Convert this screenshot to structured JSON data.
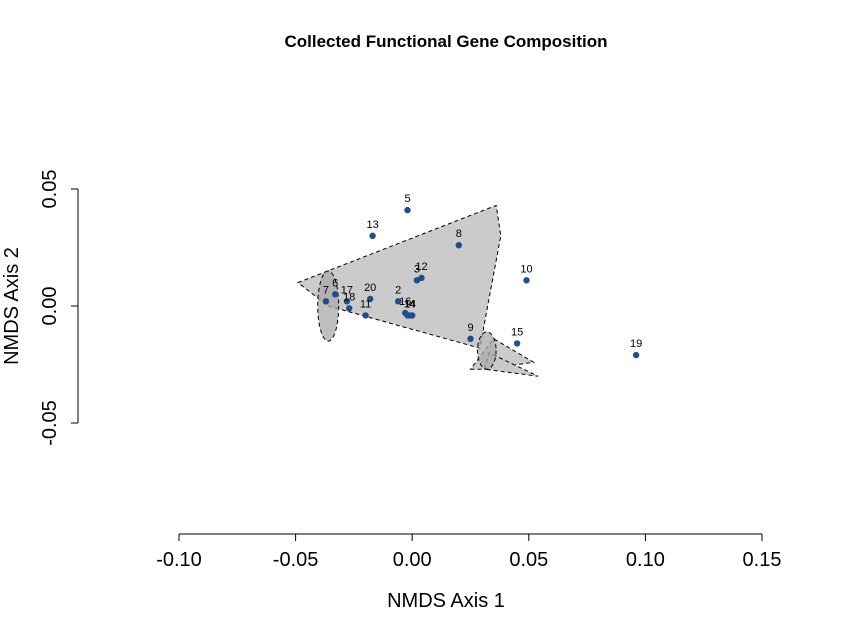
{
  "chart_data": {
    "type": "scatter",
    "title": "Collected Functional Gene Composition",
    "xlabel": "NMDS Axis 1",
    "ylabel": "NMDS Axis 2",
    "xlim": [
      -0.1,
      0.15
    ],
    "ylim": [
      -0.05,
      0.05
    ],
    "x_ticks": [
      -0.1,
      -0.05,
      0.0,
      0.05,
      0.1,
      0.15
    ],
    "x_tick_labels": [
      "-0.10",
      "-0.05",
      "0.00",
      "0.05",
      "0.10",
      "0.15"
    ],
    "y_ticks": [
      -0.05,
      0.0,
      0.05
    ],
    "y_tick_labels": [
      "-0.05",
      "0.00",
      "0.05"
    ],
    "point_color": "#1f4e8c",
    "fill_color": "#c8c8c8",
    "points": [
      {
        "label": "1",
        "x": -0.002,
        "y": -0.004
      },
      {
        "label": "2",
        "x": -0.006,
        "y": 0.002
      },
      {
        "label": "3",
        "x": 0.002,
        "y": 0.011
      },
      {
        "label": "4",
        "x": 0.0,
        "y": -0.004
      },
      {
        "label": "5",
        "x": -0.002,
        "y": 0.041
      },
      {
        "label": "6",
        "x": -0.033,
        "y": 0.005
      },
      {
        "label": "7",
        "x": -0.037,
        "y": 0.002
      },
      {
        "label": "8",
        "x": 0.02,
        "y": 0.026
      },
      {
        "label": "9",
        "x": 0.025,
        "y": -0.014
      },
      {
        "label": "10",
        "x": 0.049,
        "y": 0.011
      },
      {
        "label": "11",
        "x": -0.02,
        "y": -0.004
      },
      {
        "label": "12",
        "x": 0.004,
        "y": 0.012
      },
      {
        "label": "13",
        "x": -0.017,
        "y": 0.03
      },
      {
        "label": "14",
        "x": -0.001,
        "y": -0.004
      },
      {
        "label": "15",
        "x": 0.045,
        "y": -0.016
      },
      {
        "label": "16",
        "x": -0.003,
        "y": -0.003
      },
      {
        "label": "17",
        "x": -0.028,
        "y": 0.002
      },
      {
        "label": "18",
        "x": -0.027,
        "y": -0.001
      },
      {
        "label": "19",
        "x": 0.096,
        "y": -0.021
      },
      {
        "label": "20",
        "x": -0.018,
        "y": 0.003
      }
    ],
    "hulls": [
      [
        [
          -0.049,
          0.01
        ],
        [
          0.036,
          0.043
        ],
        [
          0.038,
          0.03
        ],
        [
          0.029,
          -0.018
        ],
        [
          -0.036,
          0.0
        ]
      ],
      [
        [
          0.025,
          -0.027
        ],
        [
          0.032,
          -0.027
        ],
        [
          0.052,
          -0.024
        ],
        [
          0.035,
          -0.014
        ]
      ],
      [
        [
          0.031,
          -0.027
        ],
        [
          0.033,
          -0.02
        ],
        [
          0.054,
          -0.03
        ]
      ]
    ],
    "ellipses": [
      {
        "cx": -0.036,
        "cy": 0.0,
        "rx": 0.0045,
        "ry": 0.015
      },
      {
        "cx": 0.032,
        "cy": -0.019,
        "rx": 0.004,
        "ry": 0.008
      }
    ]
  }
}
